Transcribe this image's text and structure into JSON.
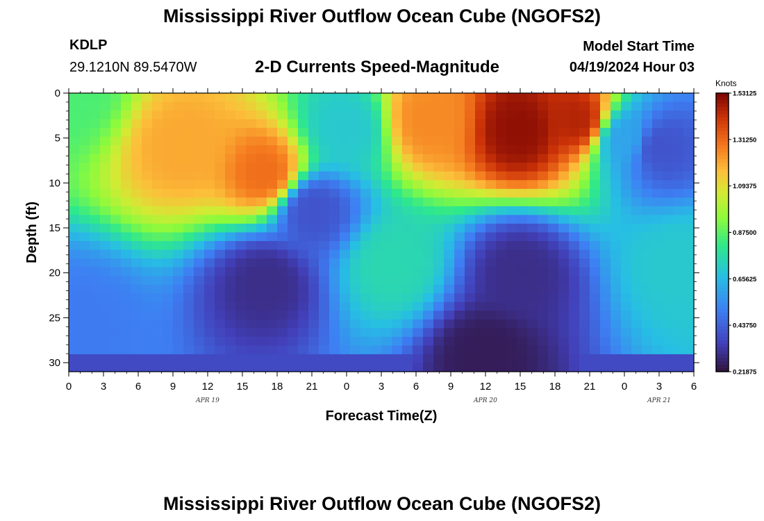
{
  "page": {
    "title": "Mississippi River Outflow Ocean Cube (NGOFS2)",
    "station_id": "KDLP",
    "station_coords": "29.1210N  89.5470W",
    "plot_subtitle": "2-D Currents Speed-Magnitude",
    "model_start_label": "Model Start Time",
    "model_start_value": "04/19/2024 Hour 03",
    "bottom_title": "Mississippi River Outflow Ocean Cube (NGOFS2)"
  },
  "chart_data": {
    "type": "heatmap",
    "xlabel": "Forecast Time(Z)",
    "ylabel": "Depth (ft)",
    "x_tick_labels": [
      "0",
      "3",
      "6",
      "9",
      "12",
      "15",
      "18",
      "21",
      "0",
      "3",
      "6",
      "9",
      "12",
      "15",
      "18",
      "21",
      "0",
      "3",
      "6"
    ],
    "date_labels": [
      {
        "text": "APR 19",
        "at_tick": 4
      },
      {
        "text": "APR 20",
        "at_tick": 12
      },
      {
        "text": "APR 21",
        "at_tick": 17
      }
    ],
    "x_range_hours": [
      0,
      54
    ],
    "y_ticks": [
      0,
      5,
      10,
      15,
      20,
      25,
      30
    ],
    "y_range_ft": [
      0,
      31
    ],
    "y_inverted": true,
    "colorbar": {
      "title": "Knots",
      "min": 0.21875,
      "max": 1.53125,
      "tick_labels": [
        "1.53125",
        "1.31250",
        "1.09375",
        "0.87500",
        "0.65625",
        "0.43750",
        "0.21875"
      ],
      "tick_values": [
        1.53125,
        1.3125,
        1.09375,
        0.875,
        0.65625,
        0.4375,
        0.21875
      ]
    },
    "features_knots": [
      {
        "hour": 0,
        "depth_ft": 0,
        "value": 0.85
      },
      {
        "hour": 10,
        "depth_ft": 6,
        "value": 1.2
      },
      {
        "hour": 17,
        "depth_ft": 9,
        "value": 1.3
      },
      {
        "hour": 21,
        "depth_ft": 13,
        "value": 0.4
      },
      {
        "hour": 24,
        "depth_ft": 4,
        "value": 0.7
      },
      {
        "hour": 28,
        "depth_ft": 19,
        "value": 0.75
      },
      {
        "hour": 31,
        "depth_ft": 3,
        "value": 1.25
      },
      {
        "hour": 39,
        "depth_ft": 4,
        "value": 1.5
      },
      {
        "hour": 44,
        "depth_ft": 3,
        "value": 1.45
      },
      {
        "hour": 48,
        "depth_ft": 5,
        "value": 0.6
      },
      {
        "hour": 51,
        "depth_ft": 6,
        "value": 0.4
      },
      {
        "hour": 53,
        "depth_ft": 19,
        "value": 0.7
      },
      {
        "hour": 17,
        "depth_ft": 21,
        "value": 0.3
      },
      {
        "hour": 39,
        "depth_ft": 20,
        "value": 0.3
      },
      {
        "hour": 36,
        "depth_ft": 29,
        "value": 0.25
      },
      {
        "hour": 1,
        "depth_ft": 26,
        "value": 0.5
      }
    ]
  }
}
